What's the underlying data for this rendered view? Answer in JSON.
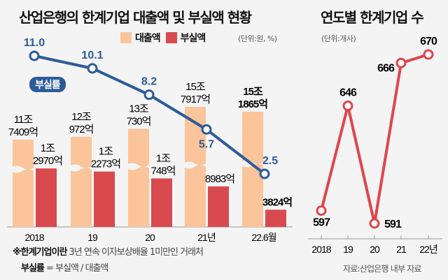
{
  "left": {
    "title": "산업은행의 한계기업 대출액 및 부실액 현황",
    "unit": "(단위:원, %)",
    "badge": "부실률",
    "note_line1_bold": "※한계기업이란",
    "note_line1_rest": " 3년 연속 이자보상배율 1미만인 거래처",
    "note_line2_bold": "부실률",
    "note_line2_rest": " = 부실액 / 대출액"
  },
  "right": {
    "title": "연도별 한계기업 수",
    "unit": "(단위:개사)",
    "source": "자료:산업은행 내부 자료"
  },
  "colors": {
    "loan": "#fbc49a",
    "bad": "#d94a4f",
    "rate": "#2d5b99",
    "count": "#e0454c"
  },
  "chart_data": [
    {
      "type": "bar",
      "title": "산업은행의 한계기업 대출액 및 부실액 현황",
      "unit": "원",
      "categories": [
        "2018",
        "19",
        "20",
        "21년",
        "22.6월"
      ],
      "series": [
        {
          "name": "대출액",
          "values_krw_100m": [
            117409,
            120972,
            130730,
            157917,
            151865
          ],
          "labels": [
            [
              "11조",
              "7409억"
            ],
            [
              "12조",
              "972억"
            ],
            [
              "13조",
              "730억"
            ],
            [
              "15조",
              "7917억"
            ],
            [
              "15조",
              "1865억"
            ]
          ]
        },
        {
          "name": "부실액",
          "values_krw_100m": [
            12970,
            12273,
            10748,
            8983,
            3824
          ],
          "labels": [
            [
              "1조",
              "2970억"
            ],
            [
              "1조",
              "2273억"
            ],
            [
              "1조",
              "748억"
            ],
            [
              "",
              "8983억"
            ],
            [
              "",
              "3824억"
            ]
          ]
        }
      ],
      "axis_break": true,
      "legend": "top"
    },
    {
      "type": "line",
      "name": "부실률",
      "unit": "%",
      "categories": [
        "2018",
        "19",
        "20",
        "21년",
        "22.6월"
      ],
      "values": [
        11.0,
        10.1,
        8.2,
        5.7,
        2.5
      ],
      "labels": [
        "11.0",
        "10.1",
        "8.2",
        "5.7",
        "2.5"
      ]
    },
    {
      "type": "line",
      "title": "연도별 한계기업 수",
      "unit": "개사",
      "categories": [
        "2018",
        "19",
        "20",
        "21",
        "22년"
      ],
      "values": [
        597,
        646,
        591,
        666,
        670
      ],
      "labels": [
        "597",
        "646",
        "591",
        "666",
        "670"
      ]
    }
  ]
}
